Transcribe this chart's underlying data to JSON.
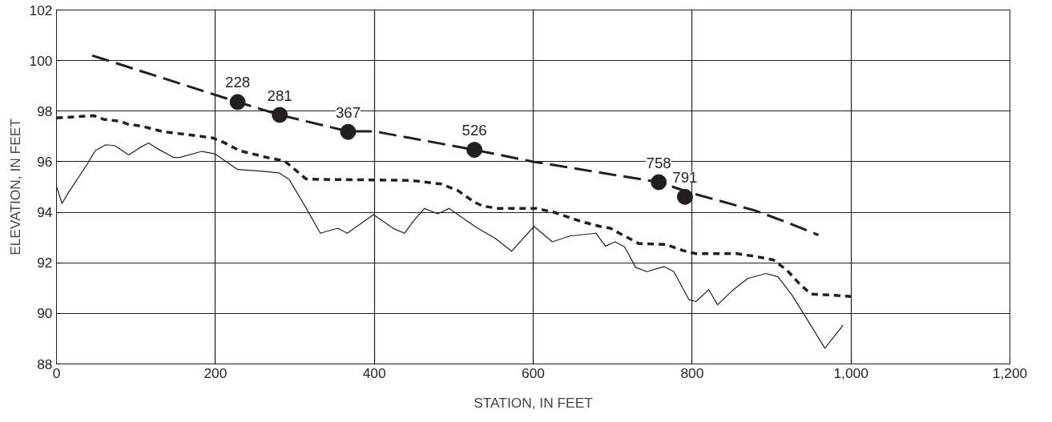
{
  "chart_data": {
    "type": "line",
    "xlabel": "STATION, IN FEET",
    "ylabel": "ELEVATION, IN FEET",
    "xlim": [
      0,
      1200
    ],
    "ylim": [
      88,
      102
    ],
    "xticks": [
      0,
      200,
      400,
      600,
      800,
      {
        "value": 1000,
        "label": "1,000"
      },
      {
        "value": 1200,
        "label": "1,200"
      }
    ],
    "yticks": [
      88,
      90,
      92,
      94,
      96,
      98,
      100,
      102
    ],
    "grid": true,
    "series": [
      {
        "line_style": "solid",
        "color": "#231f20",
        "x": [
          0,
          7,
          16,
          38,
          49,
          62,
          73,
          91,
          104,
          116,
          128,
          147,
          155,
          183,
          200,
          228,
          259,
          280,
          293,
          314,
          332,
          354,
          366,
          399,
          425,
          438,
          449,
          463,
          480,
          494,
          528,
          552,
          573,
          601,
          624,
          646,
          679,
          691,
          703,
          715,
          729,
          743,
          765,
          777,
          796,
          805,
          821,
          832,
          852,
          870,
          893,
          908,
          926,
          946,
          967,
          990
        ],
        "values": [
          95.02,
          94.35,
          94.82,
          95.87,
          96.44,
          96.67,
          96.64,
          96.27,
          96.54,
          96.74,
          96.5,
          96.17,
          96.17,
          96.41,
          96.3,
          95.69,
          95.62,
          95.56,
          95.29,
          94.18,
          93.17,
          93.37,
          93.17,
          93.91,
          93.34,
          93.17,
          93.64,
          94.15,
          93.94,
          94.15,
          93.41,
          92.97,
          92.46,
          93.44,
          92.83,
          93.06,
          93.17,
          92.66,
          92.83,
          92.63,
          91.82,
          91.65,
          91.85,
          91.65,
          90.54,
          90.47,
          90.94,
          90.34,
          90.94,
          91.38,
          91.58,
          91.45,
          90.71,
          89.7,
          88.62,
          89.53
        ]
      },
      {
        "line_style": "dotted",
        "color": "#231f20",
        "x": [
          0,
          47,
          59,
          80,
          90,
          107,
          135,
          163,
          197,
          210,
          231,
          266,
          287,
          300,
          314,
          335,
          446,
          484,
          505,
          525,
          536,
          556,
          604,
          625,
          660,
          684,
          697,
          715,
          733,
          767,
          788,
          805,
          857,
          878,
          902,
          919,
          936,
          950,
          974,
          1000
        ],
        "values": [
          97.73,
          97.82,
          97.68,
          97.6,
          97.48,
          97.41,
          97.18,
          97.08,
          96.94,
          96.77,
          96.43,
          96.16,
          96.03,
          95.69,
          95.32,
          95.3,
          95.26,
          95.12,
          94.86,
          94.42,
          94.25,
          94.15,
          94.15,
          94.01,
          93.64,
          93.44,
          93.37,
          93.06,
          92.76,
          92.73,
          92.49,
          92.36,
          92.36,
          92.26,
          92.12,
          91.72,
          91.14,
          90.76,
          90.73,
          90.67
        ]
      },
      {
        "line_style": "dashed",
        "color": "#231f20",
        "x": [
          45,
          228,
          281,
          367,
          400,
          526,
          600,
          758,
          800,
          879,
          922,
          959
        ],
        "values": [
          100.2,
          98.36,
          97.85,
          97.2,
          97.2,
          96.47,
          96.0,
          95.19,
          94.75,
          94.07,
          93.57,
          93.1
        ]
      },
      {
        "type": "scatter",
        "marker": "circle",
        "color": "#231f20",
        "x": [
          228,
          281,
          367,
          526,
          758,
          791
        ],
        "values": [
          98.36,
          97.85,
          97.18,
          96.47,
          95.19,
          94.61
        ]
      }
    ],
    "annotations": [
      {
        "text": "228",
        "x": 228,
        "y": 98.36
      },
      {
        "text": "281",
        "x": 281,
        "y": 97.85
      },
      {
        "text": "367",
        "x": 367,
        "y": 97.18
      },
      {
        "text": "526",
        "x": 526,
        "y": 96.47
      },
      {
        "text": "758",
        "x": 758,
        "y": 95.19
      },
      {
        "text": "791",
        "x": 791,
        "y": 94.61
      }
    ]
  }
}
